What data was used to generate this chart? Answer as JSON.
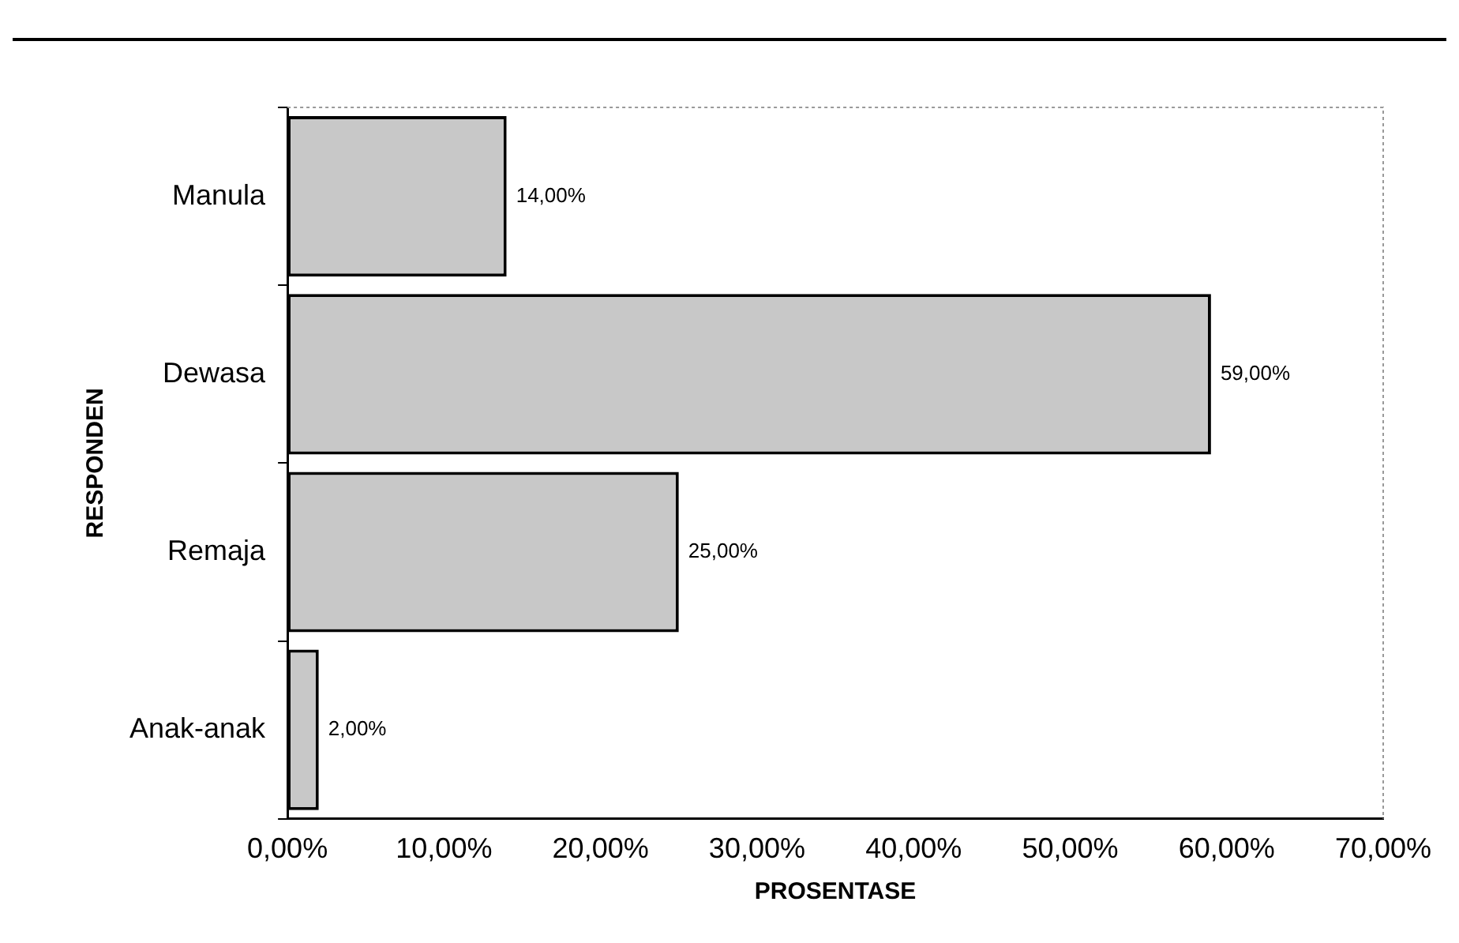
{
  "chart_data": {
    "type": "bar",
    "orientation": "horizontal",
    "xlabel": "PROSENTASE",
    "ylabel": "RESPONDEN",
    "categories": [
      "Manula",
      "Dewasa",
      "Remaja",
      "Anak-anak"
    ],
    "values": [
      14,
      59,
      25,
      2
    ],
    "color": "#c8c8c8",
    "value_labels": [
      "14,00%",
      "59,00%",
      "25,00%",
      "2,00%"
    ],
    "xlim": [
      0,
      70
    ],
    "xticks": [
      {
        "value": 0,
        "label": "0,00%"
      },
      {
        "value": 10,
        "label": "10,00%"
      },
      {
        "value": 20,
        "label": "20,00%"
      },
      {
        "value": 30,
        "label": "30,00%"
      },
      {
        "value": 40,
        "label": "40,00%"
      },
      {
        "value": 50,
        "label": "50,00%"
      },
      {
        "value": 60,
        "label": "60,00%"
      },
      {
        "value": 70,
        "label": "70,00%"
      }
    ],
    "grid": false,
    "legend": false
  }
}
